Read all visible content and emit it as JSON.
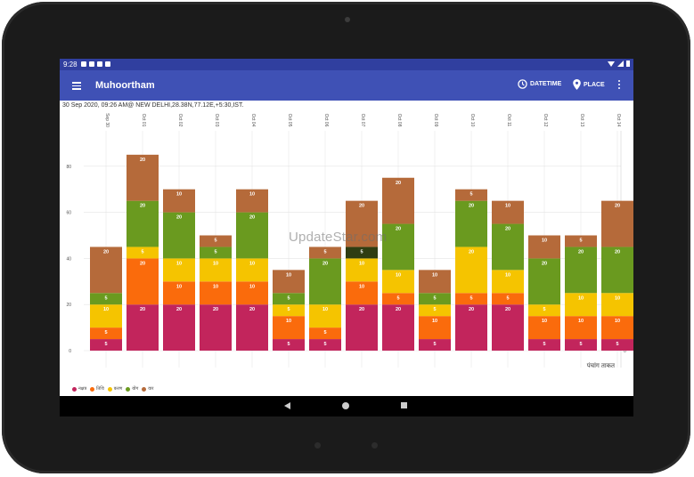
{
  "status_bar": {
    "time": "9:28"
  },
  "app_bar": {
    "title": "Muhoortham",
    "datetime_label": "DATETIME",
    "place_label": "PLACE"
  },
  "info_line": "30 Sep 2020, 09:26 AM@ NEW DELHI,28.38N,77.12E,+5:30,IST.",
  "watermark": "UpdateStar.com",
  "colors": {
    "status_bar": "#303f9f",
    "app_bar": "#3f51b5",
    "accent": "#3f51b5"
  },
  "chart_data": {
    "type": "bar",
    "stacked": true,
    "categories": [
      "Sep 30",
      "Oct 01",
      "Oct 02",
      "Oct 03",
      "Oct 04",
      "Oct 05",
      "Oct 06",
      "Oct 07",
      "Oct 08",
      "Oct 09",
      "Oct 10",
      "Oct 11",
      "Oct 12",
      "Oct 13",
      "Oct 14"
    ],
    "ylim": [
      0,
      85
    ],
    "left_ticks": [
      0,
      20,
      40,
      60,
      80
    ],
    "right_ticks": [
      0,
      20,
      40,
      60
    ],
    "ylabel": "पंचांग ताकत",
    "grid": true,
    "legend_position": "bottom-left",
    "series": [
      {
        "name": "नक्षत्र",
        "color": "#c2255c",
        "values": [
          5,
          20,
          20,
          20,
          20,
          5,
          5,
          20,
          20,
          5,
          20,
          20,
          5,
          5,
          5
        ]
      },
      {
        "name": "तिथि",
        "color": "#fa6b0c",
        "values": [
          5,
          20,
          10,
          10,
          10,
          10,
          5,
          10,
          5,
          10,
          5,
          5,
          10,
          10,
          10
        ]
      },
      {
        "name": "करण",
        "color": "#f5c400",
        "values": [
          10,
          5,
          10,
          10,
          10,
          5,
          10,
          10,
          10,
          5,
          20,
          10,
          5,
          10,
          10
        ]
      },
      {
        "name": "योग",
        "color": "#6a9a1f",
        "values": [
          5,
          20,
          20,
          5,
          20,
          5,
          20,
          5,
          20,
          5,
          20,
          20,
          20,
          20,
          20
        ]
      },
      {
        "name": "वार",
        "color": "#b56a3a",
        "values": [
          20,
          20,
          10,
          5,
          10,
          10,
          5,
          20,
          20,
          10,
          5,
          10,
          10,
          5,
          20
        ]
      }
    ],
    "dark_segments": [
      {
        "category": "Oct 07",
        "series": "योग",
        "color": "#2f3d12"
      }
    ]
  }
}
